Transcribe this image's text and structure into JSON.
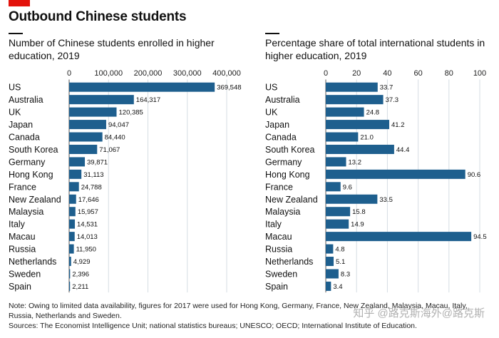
{
  "header": {
    "title": "Outbound Chinese students",
    "accent_color": "#e3120b"
  },
  "chart_data": [
    {
      "type": "bar",
      "orientation": "horizontal",
      "title": "Number of Chinese students enrolled in higher education, 2019",
      "categories": [
        "US",
        "Australia",
        "UK",
        "Japan",
        "Canada",
        "South Korea",
        "Germany",
        "Hong Kong",
        "France",
        "New Zealand",
        "Malaysia",
        "Italy",
        "Macau",
        "Russia",
        "Netherlands",
        "Sweden",
        "Spain"
      ],
      "values": [
        369548,
        164317,
        120385,
        94047,
        84440,
        71067,
        39871,
        31113,
        24788,
        17646,
        15957,
        14531,
        14013,
        11950,
        4929,
        2396,
        2211
      ],
      "value_labels": [
        "369,548",
        "164,317",
        "120,385",
        "94,047",
        "84,440",
        "71,067",
        "39,871",
        "31,113",
        "24,788",
        "17,646",
        "15,957",
        "14,531",
        "14,013",
        "11,950",
        "4,929",
        "2,396",
        "2,211"
      ],
      "xlim": [
        0,
        400000
      ],
      "ticks": [
        0,
        100000,
        200000,
        300000,
        400000
      ],
      "tick_labels": [
        "0",
        "100,000",
        "200,000",
        "300,000",
        "400,000"
      ],
      "grid": true,
      "color": "#1e5f8e"
    },
    {
      "type": "bar",
      "orientation": "horizontal",
      "title": "Percentage share of total international students in higher education, 2019",
      "categories": [
        "US",
        "Australia",
        "UK",
        "Japan",
        "Canada",
        "South Korea",
        "Germany",
        "Hong Kong",
        "France",
        "New Zealand",
        "Malaysia",
        "Italy",
        "Macau",
        "Russia",
        "Netherlands",
        "Sweden",
        "Spain"
      ],
      "values": [
        33.7,
        37.3,
        24.8,
        41.2,
        21.0,
        44.4,
        13.2,
        90.6,
        9.6,
        33.5,
        15.8,
        14.9,
        94.5,
        4.8,
        5.1,
        8.3,
        3.4
      ],
      "value_labels": [
        "33.7",
        "37.3",
        "24.8",
        "41.2",
        "21.0",
        "44.4",
        "13.2",
        "90.6",
        "9.6",
        "33.5",
        "15.8",
        "14.9",
        "94.5",
        "4.8",
        "5.1",
        "8.3",
        "3.4"
      ],
      "xlim": [
        0,
        100
      ],
      "ticks": [
        0,
        20,
        40,
        60,
        80,
        100
      ],
      "tick_labels": [
        "0",
        "20",
        "40",
        "60",
        "80",
        "100"
      ],
      "grid": true,
      "color": "#1e5f8e"
    }
  ],
  "footnotes": {
    "note": "Note: Owing to limited data availability, figures for 2017 were used for Hong Kong, Germany, France, New Zealand, Malaysia, Macau, Italy, Russia, Netherlands and Sweden.",
    "sources": "Sources: The Economist Intelligence Unit; national statistics bureaus; UNESCO; OECD; International Institute of Education."
  },
  "watermark": "知乎 @路克斯海外@路克斯"
}
